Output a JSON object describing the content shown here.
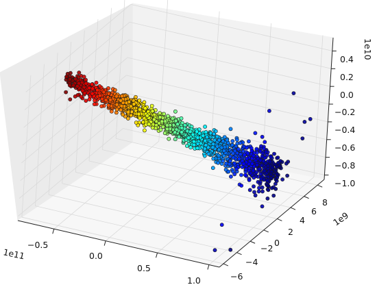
{
  "chart_data": {
    "type": "scatter",
    "projection": "3d",
    "title": "",
    "xlabel": "",
    "ylabel": "",
    "zlabel": "",
    "grid": true,
    "x_axis": {
      "multiplier_label": "1e11",
      "ticks": [
        -0.5,
        0.0,
        0.5,
        1.0
      ],
      "tick_labels": [
        "−0.5",
        "0.0",
        "0.5",
        "1.0"
      ],
      "range": [
        -0.85,
        1.1
      ]
    },
    "y_axis": {
      "multiplier_label": "1e9",
      "ticks": [
        -6,
        -4,
        -2,
        0,
        2,
        4,
        6,
        8
      ],
      "tick_labels": [
        "−6",
        "−4",
        "−2",
        "0",
        "2",
        "4",
        "6",
        "8"
      ],
      "range": [
        -6.6,
        9
      ]
    },
    "z_axis": {
      "multiplier_label": "1e10",
      "ticks": [
        -1.0,
        -0.8,
        -0.6,
        -0.4,
        -0.2,
        0.0,
        0.2,
        0.4
      ],
      "tick_labels": [
        "−1.0",
        "−0.8",
        "−0.6",
        "−0.4",
        "−0.2",
        "0.0",
        "0.2",
        "0.4"
      ],
      "range": [
        -1.05,
        0.55
      ]
    },
    "colormap": "jet (color varies with x)",
    "cluster": {
      "point_count": 1500,
      "x_range": [
        -0.8,
        1.05
      ],
      "y_trend": "from about -1 to 3 (×1e9), increasing spread at large x",
      "z_trend": "from about 0.2 down to -0.6 (×1e10)"
    },
    "outliers": [
      {
        "x": 0.95,
        "y": -5.0,
        "z": -1.0
      },
      {
        "x": 1.05,
        "y": -4.2,
        "z": -1.02
      },
      {
        "x": 0.85,
        "y": -2.5,
        "z": -0.9
      },
      {
        "x": 1.0,
        "y": 7.0,
        "z": -0.3
      },
      {
        "x": 0.98,
        "y": 8.2,
        "z": -0.35
      },
      {
        "x": 1.02,
        "y": 6.5,
        "z": -0.45
      },
      {
        "x": 0.95,
        "y": 2.0,
        "z": -0.95
      },
      {
        "x": 1.0,
        "y": 5.0,
        "z": 0.15
      },
      {
        "x": 0.9,
        "y": 3.0,
        "z": 0.05
      }
    ]
  }
}
